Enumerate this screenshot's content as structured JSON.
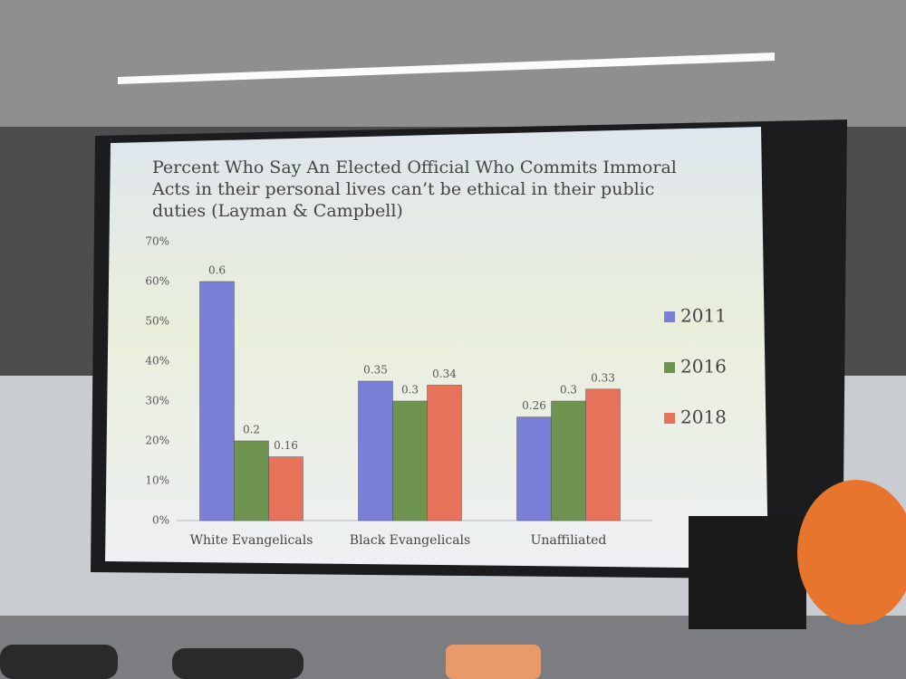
{
  "chart_data": {
    "type": "bar",
    "title": [
      "Percent Who Say An Elected Official Who Commits Immoral",
      "Acts in their personal lives can’t be ethical in their public",
      "duties (Layman & Campbell)"
    ],
    "categories": [
      "White Evangelicals",
      "Black Evangelicals",
      "Unaffiliated"
    ],
    "series": [
      {
        "name": "2011",
        "color": "#7a7fd8",
        "values": [
          0.6,
          0.35,
          0.26
        ]
      },
      {
        "name": "2016",
        "color": "#6e9450",
        "values": [
          0.2,
          0.3,
          0.3
        ]
      },
      {
        "name": "2018",
        "color": "#e8735b",
        "values": [
          0.16,
          0.34,
          0.33
        ]
      }
    ],
    "ylim": [
      0,
      0.7
    ],
    "yticks": [
      {
        "value": 0,
        "label": "0%"
      },
      {
        "value": 0.1,
        "label": "10%"
      },
      {
        "value": 0.2,
        "label": "20%"
      },
      {
        "value": 0.3,
        "label": "30%"
      },
      {
        "value": 0.4,
        "label": "40%"
      },
      {
        "value": 0.5,
        "label": "50%"
      },
      {
        "value": 0.6,
        "label": "60%"
      },
      {
        "value": 0.7,
        "label": "70%"
      }
    ],
    "grid": false,
    "legend": "right"
  }
}
